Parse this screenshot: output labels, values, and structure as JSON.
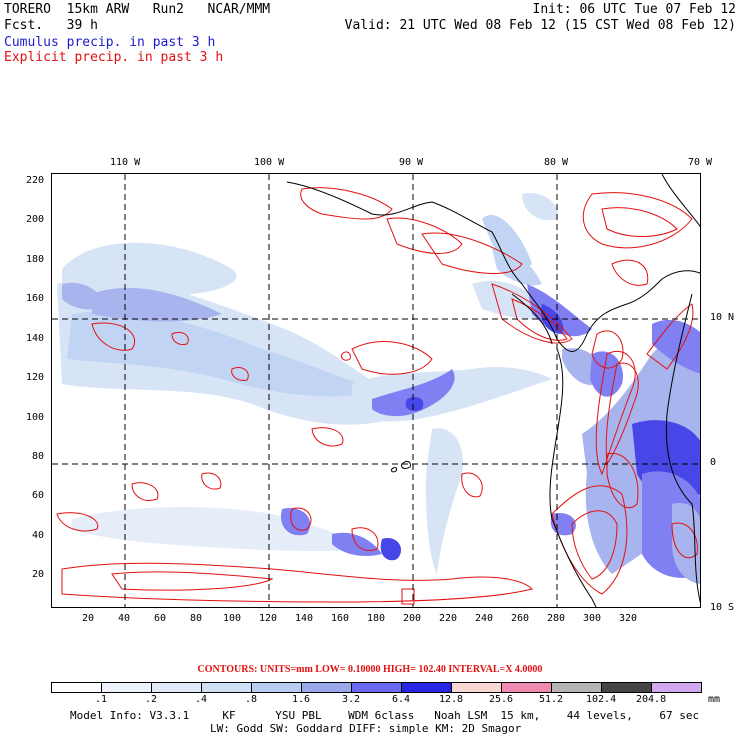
{
  "header": {
    "model_name": "TORERO  15km ARW   Run2   NCAR/MMM",
    "forecast": "Fcst.   39 h",
    "init": "Init: 06 UTC Tue 07 Feb 12",
    "valid": "Valid: 21 UTC Wed 08 Feb 12 (15 CST Wed 08 Feb 12)"
  },
  "legend_titles": {
    "cumulus": "Cumulus precip. in past 3 h",
    "explicit": "Explicit precip. in past 3 h"
  },
  "map": {
    "top_lon_labels": [
      "110 W",
      "100 W",
      "90 W",
      "80 W",
      "70 W"
    ],
    "right_lat_labels": [
      "10 N",
      "0",
      "10 S"
    ],
    "y_ticks": [
      "220",
      "200",
      "180",
      "160",
      "140",
      "120",
      "100",
      "80",
      "60",
      "40",
      "20"
    ],
    "x_ticks": [
      "20",
      "40",
      "60",
      "80",
      "100",
      "120",
      "140",
      "160",
      "180",
      "200",
      "220",
      "240",
      "260",
      "280",
      "300",
      "320"
    ]
  },
  "contours": {
    "label": "CONTOURS:  UNITS=mm  LOW= 0.10000     HIGH=  102.40     INTERVAL=X  4.0000"
  },
  "color_scale": {
    "labels": [
      ".1",
      ".2",
      ".4",
      ".8",
      "1.6",
      "3.2",
      "6.4",
      "12.8",
      "25.6",
      "51.2",
      "102.4",
      "204.8"
    ],
    "unit": "mm",
    "colors": [
      "#ffffff",
      "#eef3fb",
      "#e1eaf8",
      "#cfe0f5",
      "#b8cdf2",
      "#9aa8ec",
      "#6a6af0",
      "#2828e4",
      "#f8d6d2",
      "#f08ab0",
      "#b5b5b5",
      "#454545",
      "#d2a8f0"
    ]
  },
  "footer": {
    "line1": "Model Info: V3.3.1     KF      YSU PBL    WDM 6class   Noah LSM  15 km,    44 levels,    67 sec",
    "line2": "LW: Godd SW: Goddard DIFF: simple KM: 2D Smagor"
  }
}
